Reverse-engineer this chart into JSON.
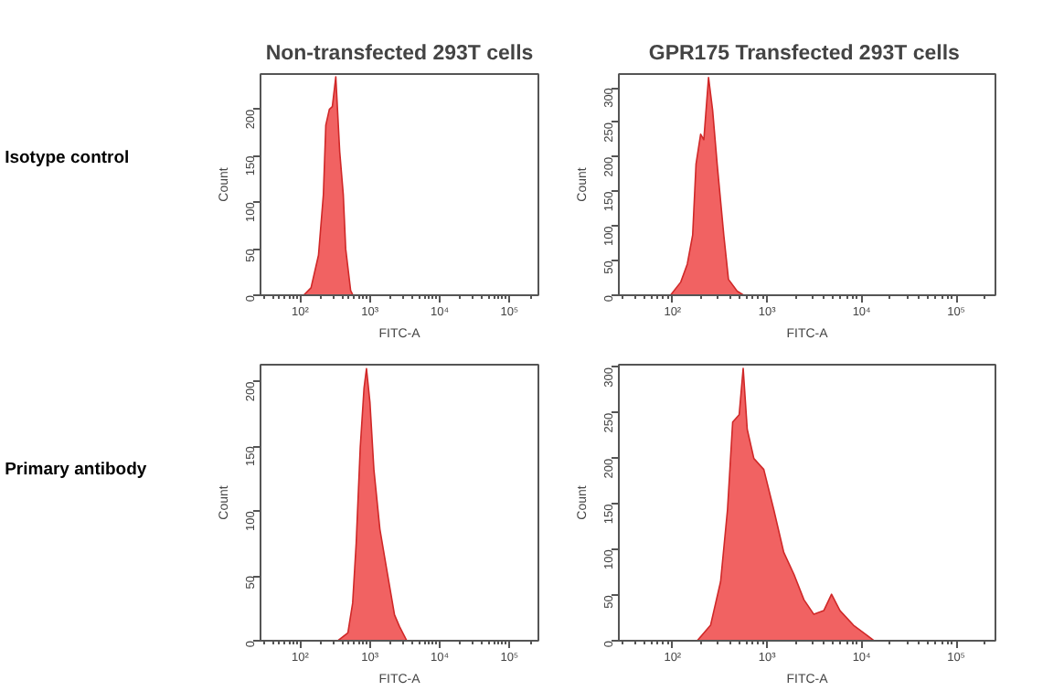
{
  "chart_data": [
    {
      "type": "area",
      "title": "Non-transfected 293T cells",
      "annotations": [
        "Isotype control"
      ],
      "xlabel": "FITC-A",
      "ylabel": "Count",
      "log": "x",
      "color": "#f05a5a",
      "x": [
        112,
        143,
        183,
        215,
        233,
        262,
        289,
        324,
        369,
        415,
        449,
        529,
        572
      ],
      "values": [
        0,
        8,
        43,
        108,
        183,
        200,
        203,
        235,
        154,
        108,
        50,
        5,
        0
      ],
      "xlim": [
        27,
        260000
      ],
      "ylim": [
        0,
        238
      ],
      "xticks": [
        {
          "value": 100,
          "label": "10²"
        },
        {
          "value": 1000,
          "label": "10³"
        },
        {
          "value": 10000,
          "label": "10⁴"
        },
        {
          "value": 100000,
          "label": "10⁵"
        }
      ],
      "yticks": [
        0,
        50,
        100,
        150,
        200
      ]
    },
    {
      "type": "area",
      "title": "GPR175  Transfected 293T cells",
      "xlabel": "FITC-A",
      "ylabel": "Count",
      "log": "x",
      "color": "#f05a5a",
      "x": [
        95,
        122,
        143,
        163,
        177,
        198,
        214,
        240,
        265,
        296,
        348,
        390,
        482,
        565
      ],
      "values": [
        0,
        19,
        45,
        87,
        190,
        233,
        225,
        315,
        268,
        190,
        87,
        23,
        6,
        0
      ],
      "xlim": [
        27,
        260000
      ],
      "ylim": [
        0,
        320
      ],
      "xticks": [
        {
          "value": 100,
          "label": "10²"
        },
        {
          "value": 1000,
          "label": "10³"
        },
        {
          "value": 10000,
          "label": "10⁴"
        },
        {
          "value": 100000,
          "label": "10⁵"
        }
      ],
      "yticks": [
        0,
        50,
        100,
        150,
        200,
        250,
        300
      ]
    },
    {
      "type": "area",
      "annotations": [
        "Primary  antibody"
      ],
      "xlabel": "FITC-A",
      "ylabel": "Count",
      "log": "x",
      "color": "#f05a5a",
      "x": [
        347,
        483,
        565,
        635,
        726,
        823,
        892,
        1000,
        1140,
        1390,
        1780,
        2250,
        2650,
        3380
      ],
      "values": [
        0,
        6,
        29,
        75,
        149,
        195,
        210,
        184,
        132,
        86,
        52,
        20,
        11,
        0
      ],
      "xlim": [
        27,
        260000
      ],
      "ylim": [
        0,
        213
      ],
      "xticks": [
        {
          "value": 100,
          "label": "10²"
        },
        {
          "value": 1000,
          "label": "10³"
        },
        {
          "value": 10000,
          "label": "10⁴"
        },
        {
          "value": 100000,
          "label": "10⁵"
        }
      ],
      "yticks": [
        0,
        50,
        100,
        150,
        200
      ]
    },
    {
      "type": "area",
      "xlabel": "FITC-A",
      "ylabel": "Count",
      "log": "x",
      "color": "#f05a5a",
      "x": [
        182,
        252,
        322,
        381,
        432,
        506,
        558,
        616,
        724,
        922,
        1175,
        1500,
        1920,
        2450,
        3120,
        3970,
        4800,
        5900,
        8200,
        11400,
        13500
      ],
      "values": [
        0,
        17,
        65,
        144,
        240,
        248,
        299,
        232,
        200,
        188,
        144,
        97,
        73,
        45,
        29,
        33,
        51,
        33,
        17,
        6,
        0
      ],
      "xlim": [
        27,
        260000
      ],
      "ylim": [
        0,
        303
      ],
      "xticks": [
        {
          "value": 100,
          "label": "10²"
        },
        {
          "value": 1000,
          "label": "10³"
        },
        {
          "value": 10000,
          "label": "10⁴"
        },
        {
          "value": 100000,
          "label": "10⁵"
        }
      ],
      "yticks": [
        0,
        50,
        100,
        150,
        200,
        250,
        300
      ]
    }
  ]
}
